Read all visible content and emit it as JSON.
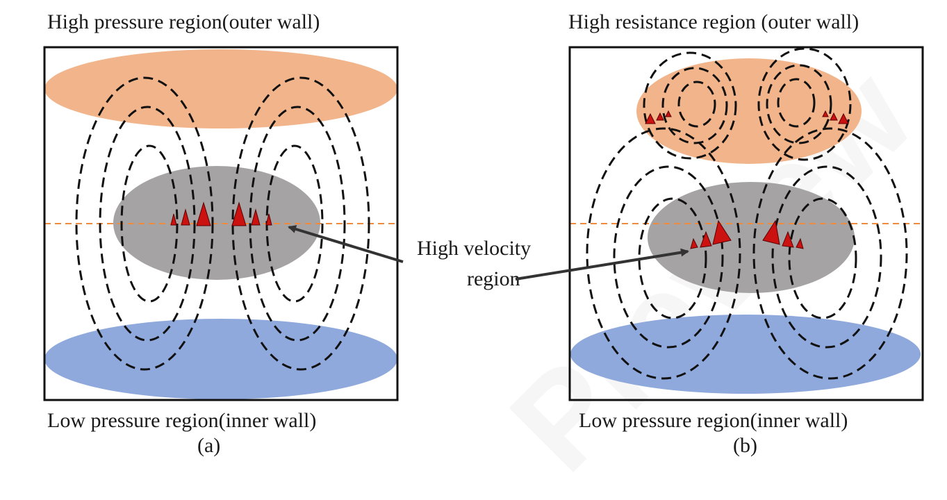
{
  "panel_a": {
    "top_label": "High pressure region(outer wall)",
    "bottom_label": "Low pressure region(inner wall)",
    "caption": "(a)"
  },
  "panel_b": {
    "top_label": "High resistance region (outer wall)",
    "bottom_label": "Low pressure region(inner wall)",
    "caption": "(b)"
  },
  "annotation": {
    "line1": "High velocity",
    "line2": "region"
  },
  "watermark_text": "Preview",
  "colors": {
    "high_pressure": "#f2b48a",
    "low_pressure": "#8fa9dc",
    "high_velocity": "#a5a3a3",
    "arrow_fill": "#cc1111",
    "streamline": "#111111",
    "midline": "#f08a3c"
  }
}
